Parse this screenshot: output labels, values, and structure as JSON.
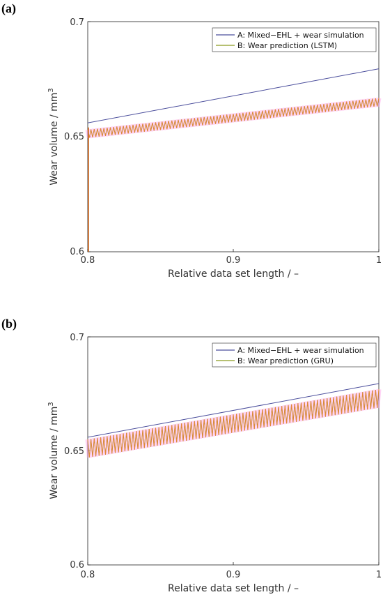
{
  "chart_data": [
    {
      "panel": "(a)",
      "type": "line",
      "xlabel": "Relative data set length / –",
      "ylabel": "Wear volume / mm",
      "ylabel_sup": "3",
      "xlim": [
        0.8,
        1.0
      ],
      "ylim": [
        0.6,
        0.7
      ],
      "xticks": [
        "0.8",
        "0.9",
        "1"
      ],
      "yticks": [
        "0.6",
        "0.65",
        "0.7"
      ],
      "legend_position": "top-right",
      "series": [
        {
          "name": "A: Mixed−EHL + wear simulation",
          "color": "#4b4e9c",
          "x": [
            0.8,
            1.0
          ],
          "y": [
            0.656,
            0.6795
          ]
        },
        {
          "name": "B: Wear prediction (LSTM)",
          "color": "#8b9a1e",
          "x": [
            0.8,
            1.0
          ],
          "y": [
            0.653,
            0.6668
          ],
          "oscillation": 0.0035
        }
      ],
      "segment_start": {
        "x": 0.8,
        "y_from": 0.6,
        "y_to": 0.654,
        "color": "#d2691e"
      }
    },
    {
      "panel": "(b)",
      "type": "line",
      "xlabel": "Relative data set length / –",
      "ylabel": "Wear volume / mm",
      "ylabel_sup": "3",
      "xlim": [
        0.8,
        1.0
      ],
      "ylim": [
        0.6,
        0.7
      ],
      "xticks": [
        "0.8",
        "0.9",
        "1"
      ],
      "yticks": [
        "0.6",
        "0.65",
        "0.7"
      ],
      "legend_position": "top-right",
      "series": [
        {
          "name": "A: Mixed−EHL + wear simulation",
          "color": "#4b4e9c",
          "x": [
            0.8,
            1.0
          ],
          "y": [
            0.656,
            0.6795
          ]
        },
        {
          "name": "B: Wear prediction (GRU)",
          "color": "#8b9a1e",
          "x": [
            0.8,
            1.0
          ],
          "y": [
            0.655,
            0.677
          ],
          "oscillation": 0.008
        }
      ]
    }
  ]
}
